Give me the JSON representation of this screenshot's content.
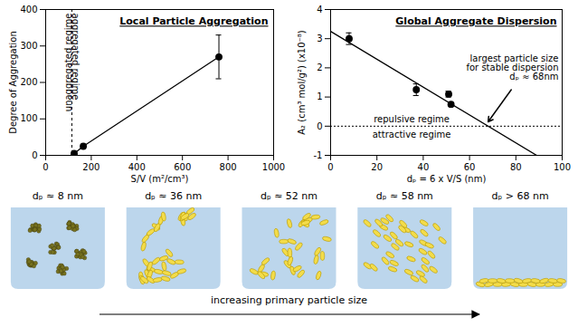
{
  "chart_data": [
    {
      "type": "line",
      "title": "Local Particle Aggregation",
      "x_label": "S/V (m²/cm³)",
      "y_label": "Degree of Aggregation",
      "x": [
        125,
        165,
        760
      ],
      "values": [
        5,
        25,
        270
      ],
      "errors": [
        null,
        null,
        60
      ],
      "marker": "circle",
      "color": "#000000",
      "threshold_x": 115,
      "annotations": [
        "unaggregated regime",
        "aggregated regime"
      ],
      "xlim": [
        0,
        1000
      ],
      "xticks": [
        0,
        200,
        400,
        600,
        800,
        1000
      ],
      "ylim": [
        0,
        400
      ],
      "yticks": [
        0,
        100,
        200,
        300,
        400
      ]
    },
    {
      "type": "scatter",
      "title": "Global Aggregate Dispersion",
      "x_label": "dₚ = 6 x V/S (nm)",
      "y_label": "A₂ (cm³ mol/g²) (x10⁻⁸)",
      "x": [
        8,
        37,
        51,
        52
      ],
      "values": [
        3.0,
        1.25,
        1.1,
        0.75
      ],
      "errors": [
        0.2,
        0.2,
        0.1,
        0.05
      ],
      "marker": "circle",
      "color": "#000000",
      "fit": {
        "x": [
          0,
          90
        ],
        "values": [
          3.25,
          -1.05
        ]
      },
      "threshold_y": 0,
      "annotations": [
        "largest particle size\nfor stable dispersion\ndₚ ≈ 68nm",
        "repulsive regime",
        "attractive regime"
      ],
      "xlim": [
        0,
        100
      ],
      "xticks": [
        0,
        20,
        40,
        60,
        80,
        100
      ],
      "ylim": [
        -1,
        4
      ],
      "yticks": [
        -1,
        0,
        1,
        2,
        3,
        4
      ]
    }
  ],
  "illustration": {
    "panels": [
      "dₚ ≈ 8 nm",
      "dₚ ≈ 36 nm",
      "dₚ ≈ 52 nm",
      "dₚ ≈ 58 nm",
      "dₚ > 68 nm"
    ],
    "caption": "increasing primary particle size"
  }
}
